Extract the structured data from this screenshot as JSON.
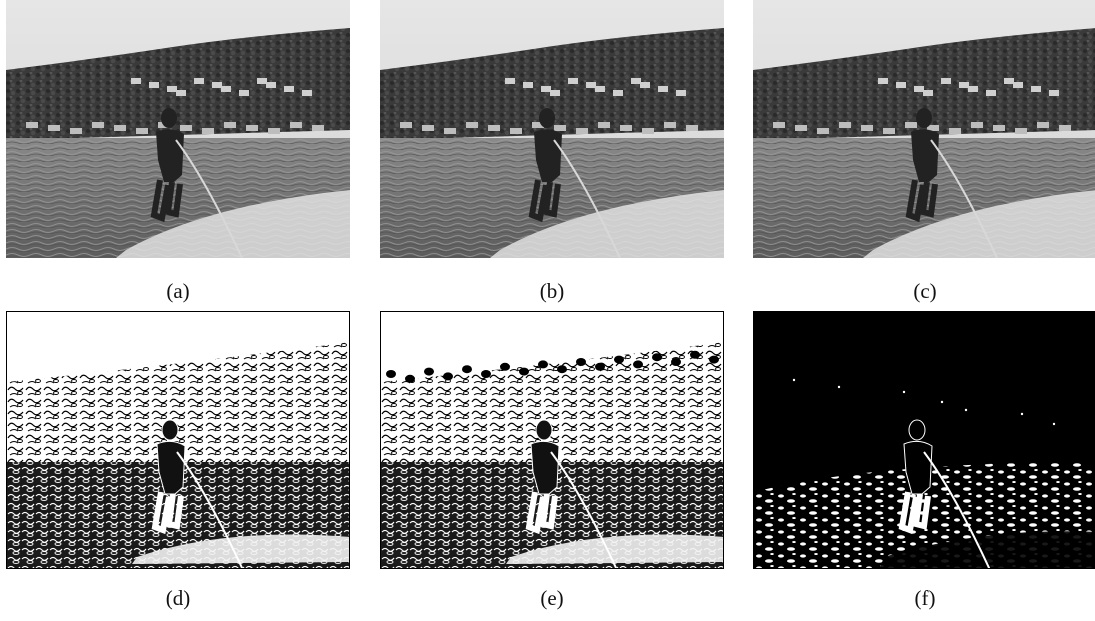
{
  "figure": {
    "panels": [
      {
        "id": "a",
        "caption": "(a)",
        "kind": "photo",
        "subject": "water-skier"
      },
      {
        "id": "b",
        "caption": "(b)",
        "kind": "photo",
        "subject": "water-skier"
      },
      {
        "id": "c",
        "caption": "(c)",
        "kind": "photo",
        "subject": "water-skier"
      },
      {
        "id": "d",
        "caption": "(d)",
        "kind": "edge-map",
        "subject": "water-skier"
      },
      {
        "id": "e",
        "caption": "(e)",
        "kind": "edge-map",
        "subject": "water-skier"
      },
      {
        "id": "f",
        "caption": "(f)",
        "kind": "inverted-edge-map",
        "subject": "water-skier"
      }
    ]
  }
}
